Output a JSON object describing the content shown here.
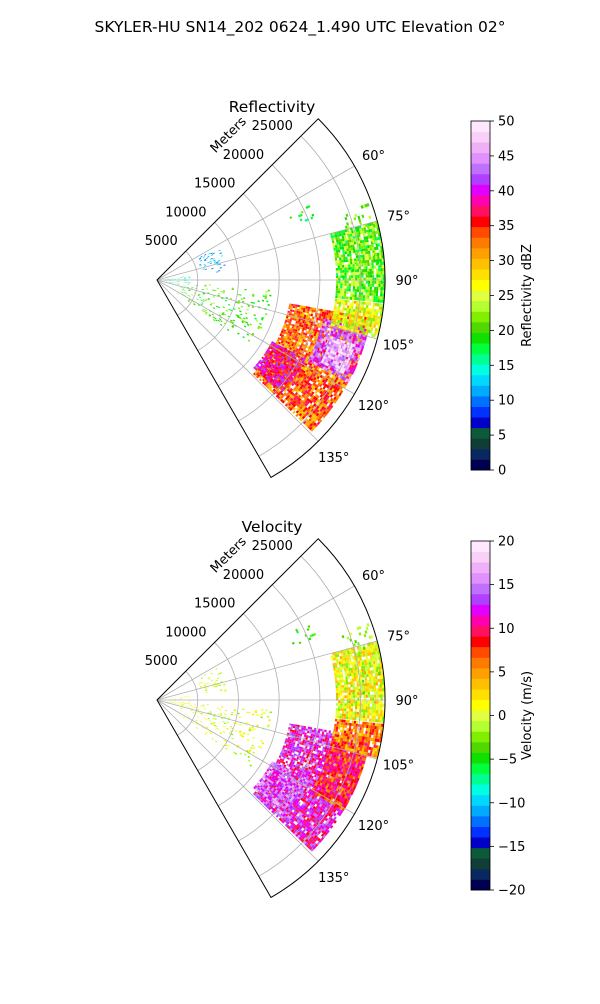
{
  "figure": {
    "title": "SKYLER-HU  SN14_202  0624_1.490 UTC Elevation 02°"
  },
  "chart_data": [
    {
      "type": "heatmap",
      "projection": "polar-sector",
      "title": "Reflectivity",
      "range_axis_label": "Meters",
      "range_ticks": [
        5000,
        10000,
        15000,
        20000,
        25000
      ],
      "range_tick_labels": [
        "5000",
        "10000",
        "15000",
        "20000",
        "25000"
      ],
      "rlim": [
        0,
        28000
      ],
      "azimuth_range_deg": [
        45,
        150
      ],
      "azimuth_ticks": [
        60,
        75,
        90,
        105,
        120,
        135
      ],
      "azimuth_tick_labels": [
        "60°",
        "75°",
        "90°",
        "105°",
        "120°",
        "135°"
      ],
      "grid": true,
      "colorbar": {
        "label": "Reflectivity dBZ",
        "vmin": 0,
        "vmax": 50,
        "ticks": [
          0,
          5,
          10,
          15,
          20,
          25,
          30,
          35,
          40,
          45,
          50
        ],
        "tick_labels": [
          "0",
          "5",
          "10",
          "15",
          "20",
          "25",
          "30",
          "35",
          "40",
          "45",
          "50"
        ],
        "colors": [
          "#000050",
          "#0a2860",
          "#103d35",
          "#0d5a3a",
          "#0000c8",
          "#0032ff",
          "#0070ff",
          "#00aaff",
          "#00d8ff",
          "#00ffe0",
          "#00ff90",
          "#00ff3c",
          "#10e000",
          "#50d800",
          "#80f000",
          "#b4ff30",
          "#e0ff40",
          "#ffff00",
          "#ffe000",
          "#ffc000",
          "#ffa000",
          "#ff7a00",
          "#ff4a00",
          "#ff0000",
          "#ff1060",
          "#ff00b0",
          "#e000ff",
          "#b040ff",
          "#c070ff",
          "#e090ff",
          "#f0b0f8",
          "#f8d0f8",
          "#ffe8ff"
        ]
      },
      "echo_regions": [
        {
          "az": [
            100,
            134
          ],
          "r": [
            16500,
            26500
          ],
          "value": 33
        },
        {
          "az": [
            103,
            118
          ],
          "r": [
            21000,
            26500
          ],
          "value": 42
        },
        {
          "az": [
            108,
            116
          ],
          "r": [
            22500,
            25500
          ],
          "value": 48
        },
        {
          "az": [
            118,
            132
          ],
          "r": [
            16000,
            20500
          ],
          "value": 38
        },
        {
          "az": [
            96,
            104
          ],
          "r": [
            22000,
            28000
          ],
          "value": 26
        },
        {
          "az": [
            75,
            95
          ],
          "r": [
            22000,
            28000
          ],
          "value": 21
        }
      ],
      "clutter": [
        {
          "az": [
            63,
            68
          ],
          "r": [
            18000,
            21000
          ],
          "value": 19
        },
        {
          "az": [
            62,
            82
          ],
          "r": [
            5500,
            8500
          ],
          "value": 12
        },
        {
          "az": [
            82,
            102
          ],
          "r": [
            1000,
            4000
          ],
          "value": 15
        },
        {
          "az": [
            95,
            125
          ],
          "r": [
            3000,
            14000
          ],
          "value": 20
        },
        {
          "az": [
            70,
            88
          ],
          "r": [
            24000,
            27500
          ],
          "value": 22
        }
      ]
    },
    {
      "type": "heatmap",
      "projection": "polar-sector",
      "title": "Velocity",
      "range_axis_label": "Meters",
      "range_ticks": [
        5000,
        10000,
        15000,
        20000,
        25000
      ],
      "range_tick_labels": [
        "5000",
        "10000",
        "15000",
        "20000",
        "25000"
      ],
      "rlim": [
        0,
        28000
      ],
      "azimuth_range_deg": [
        45,
        150
      ],
      "azimuth_ticks": [
        60,
        75,
        90,
        105,
        120,
        135
      ],
      "azimuth_tick_labels": [
        "60°",
        "75°",
        "90°",
        "105°",
        "120°",
        "135°"
      ],
      "grid": true,
      "colorbar": {
        "label": "Velocity (m/s)",
        "vmin": -20,
        "vmax": 20,
        "ticks": [
          -20,
          -15,
          -10,
          -5,
          0,
          5,
          10,
          15,
          20
        ],
        "tick_labels": [
          "−20",
          "−15",
          "−10",
          "−5",
          "0",
          "5",
          "10",
          "15",
          "20"
        ],
        "colors": [
          "#000050",
          "#0a2860",
          "#103d35",
          "#0d5a3a",
          "#0000c8",
          "#0032ff",
          "#0070ff",
          "#00aaff",
          "#00d8ff",
          "#00ffe0",
          "#00ff90",
          "#00ff3c",
          "#10e000",
          "#50d800",
          "#80f000",
          "#b4ff30",
          "#e0ff40",
          "#ffff00",
          "#ffe000",
          "#ffc000",
          "#ffa000",
          "#ff7a00",
          "#ff4a00",
          "#ff0000",
          "#ff1060",
          "#ff00b0",
          "#e000ff",
          "#b040ff",
          "#c070ff",
          "#e090ff",
          "#f0b0f8",
          "#f8d0f8",
          "#ffe8ff"
        ]
      },
      "echo_regions": [
        {
          "az": [
            100,
            134
          ],
          "r": [
            16500,
            26500
          ],
          "value": 12
        },
        {
          "az": [
            104,
            120
          ],
          "r": [
            22000,
            26500
          ],
          "value": 8
        },
        {
          "az": [
            118,
            132
          ],
          "r": [
            16000,
            21000
          ],
          "value": 14
        },
        {
          "az": [
            96,
            104
          ],
          "r": [
            22000,
            28000
          ],
          "value": 6
        },
        {
          "az": [
            75,
            95
          ],
          "r": [
            22000,
            28000
          ],
          "value": 1
        }
      ],
      "clutter": [
        {
          "az": [
            63,
            68
          ],
          "r": [
            18000,
            21000
          ],
          "value": -4
        },
        {
          "az": [
            62,
            82
          ],
          "r": [
            5500,
            8500
          ],
          "value": 0
        },
        {
          "az": [
            82,
            102
          ],
          "r": [
            1000,
            4000
          ],
          "value": 1
        },
        {
          "az": [
            95,
            125
          ],
          "r": [
            3000,
            14000
          ],
          "value": 0
        },
        {
          "az": [
            70,
            88
          ],
          "r": [
            24000,
            27500
          ],
          "value": -2
        }
      ]
    }
  ]
}
